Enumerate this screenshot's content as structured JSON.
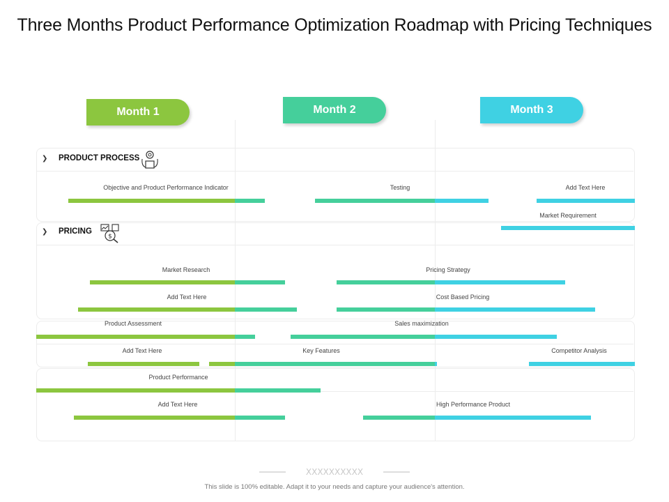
{
  "title": "Three Months Product Performance Optimization Roadmap with Pricing Techniques",
  "colors": {
    "month1": "#8cc63f",
    "month2": "#45cf9b",
    "month3": "#3fd1e3"
  },
  "months": [
    "Month 1",
    "Month 2",
    "Month 3"
  ],
  "sections": [
    {
      "label": "PRODUCT PROCESS",
      "icon": "gear-box-icon"
    },
    {
      "label": "PRICING",
      "icon": "dollar-chart-icon"
    }
  ],
  "tasks": [
    {
      "label": "Objective and Product Performance Indicator",
      "start": 0.16,
      "end": 1.15
    },
    {
      "label": "Testing",
      "start": 1.4,
      "end": 2.27
    },
    {
      "label": "Add Text Here",
      "start": 2.51,
      "end": 3.0
    },
    {
      "label": "Market Requirement",
      "start": 2.33,
      "end": 3.0
    },
    {
      "label": "Market Research",
      "start": 0.27,
      "end": 1.25
    },
    {
      "label": "Pricing Strategy",
      "start": 1.51,
      "end": 2.65
    },
    {
      "label": "Add Text Here",
      "start": 0.21,
      "end": 1.31
    },
    {
      "label": "Cost Based Pricing",
      "start": 1.51,
      "end": 2.8
    },
    {
      "label": "Product Assessment",
      "start": 0.0,
      "end": 1.1
    },
    {
      "label": "Sales maximization",
      "start": 1.28,
      "end": 2.61
    },
    {
      "label": "Add Text Here",
      "start": 0.26,
      "end": 0.82
    },
    {
      "label": "Key Features",
      "start": 0.87,
      "end": 2.01
    },
    {
      "label": "Competitor Analysis",
      "start": 2.47,
      "end": 3.0
    },
    {
      "label": "Product Performance",
      "start": 0.0,
      "end": 1.43
    },
    {
      "label": "Add Text Here",
      "start": 0.19,
      "end": 1.25
    },
    {
      "label": "High Performance Product",
      "start": 1.64,
      "end": 2.78
    }
  ],
  "footer": {
    "decoration": "XXXXXXXXXX",
    "text": "This slide is 100% editable. Adapt it to your needs and capture your audience's attention."
  }
}
